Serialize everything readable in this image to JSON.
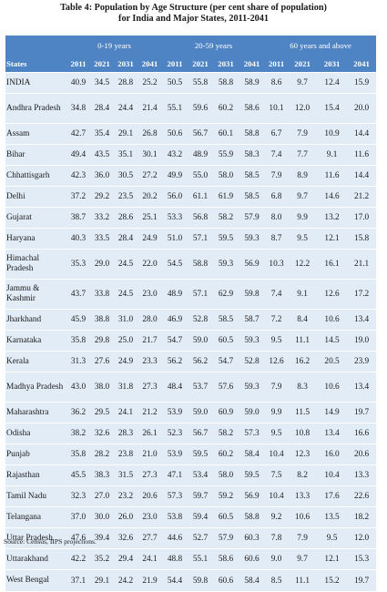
{
  "title": {
    "line1": "Table 4: Population by Age Structure (per cent share of population)",
    "line2": "for India and Major States, 2011-2041"
  },
  "groups": [
    "0-19 years",
    "20-59 years",
    "60 years and above"
  ],
  "header": {
    "state": "States",
    "years": [
      "2011",
      "2021",
      "2031",
      "2041",
      "2011",
      "2021",
      "2031",
      "2041",
      "2011",
      "2021",
      "2031",
      "2041"
    ]
  },
  "rows": [
    {
      "state": "INDIA",
      "values": [
        "40.9",
        "34.5",
        "28.8",
        "25.2",
        "50.5",
        "55.8",
        "58.8",
        "58.9",
        "8.6",
        "9.7",
        "12.4",
        "15.9"
      ]
    },
    {
      "state": "Andhra Pradesh",
      "values": [
        "34.8",
        "28.4",
        "24.4",
        "21.4",
        "55.1",
        "59.6",
        "60.2",
        "58.6",
        "10.1",
        "12.0",
        "15.4",
        "20.0"
      ]
    },
    {
      "state": "Assam",
      "values": [
        "42.7",
        "35.4",
        "29.1",
        "26.8",
        "50.6",
        "56.7",
        "60.1",
        "58.8",
        "6.7",
        "7.9",
        "10.9",
        "14.4"
      ]
    },
    {
      "state": "Bihar",
      "values": [
        "49.4",
        "43.5",
        "35.1",
        "30.1",
        "43.2",
        "48.9",
        "55.9",
        "58.3",
        "7.4",
        "7.7",
        "9.1",
        "11.6"
      ]
    },
    {
      "state": "Chhattisgarh",
      "values": [
        "42.3",
        "36.0",
        "30.5",
        "27.2",
        "49.9",
        "55.0",
        "58.0",
        "58.5",
        "7.9",
        "8.9",
        "11.6",
        "14.4"
      ]
    },
    {
      "state": "Delhi",
      "values": [
        "37.2",
        "29.2",
        "23.5",
        "20.2",
        "56.0",
        "61.1",
        "61.9",
        "58.5",
        "6.8",
        "9.7",
        "14.6",
        "21.2"
      ]
    },
    {
      "state": "Gujarat",
      "values": [
        "38.7",
        "33.2",
        "28.6",
        "25.1",
        "53.3",
        "56.8",
        "58.2",
        "57.9",
        "8.0",
        "9.9",
        "13.2",
        "17.0"
      ]
    },
    {
      "state": "Haryana",
      "values": [
        "40.3",
        "33.5",
        "28.4",
        "24.9",
        "51.0",
        "57.1",
        "59.5",
        "59.3",
        "8.7",
        "9.5",
        "12.1",
        "15.8"
      ]
    },
    {
      "state": "Himachal Pradesh",
      "values": [
        "35.3",
        "29.0",
        "24.5",
        "22.0",
        "54.5",
        "58.8",
        "59.3",
        "56.9",
        "10.3",
        "12.2",
        "16.1",
        "21.1"
      ]
    },
    {
      "state": "Jammu & Kashmir",
      "values": [
        "43.7",
        "33.8",
        "24.5",
        "23.0",
        "48.9",
        "57.1",
        "62.9",
        "59.8",
        "7.4",
        "9.1",
        "12.6",
        "17.2"
      ]
    },
    {
      "state": "Jharkhand",
      "values": [
        "45.9",
        "38.8",
        "31.0",
        "28.0",
        "46.9",
        "52.8",
        "58.5",
        "58.7",
        "7.2",
        "8.4",
        "10.6",
        "13.4"
      ]
    },
    {
      "state": "Karnataka",
      "values": [
        "35.8",
        "29.8",
        "25.0",
        "21.7",
        "54.7",
        "59.0",
        "60.5",
        "59.3",
        "9.5",
        "11.1",
        "14.5",
        "19.0"
      ]
    },
    {
      "state": "Kerala",
      "values": [
        "31.3",
        "27.6",
        "24.9",
        "23.3",
        "56.2",
        "56.2",
        "54.7",
        "52.8",
        "12.6",
        "16.2",
        "20.5",
        "23.9"
      ]
    },
    {
      "state": "Madhya Pradesh",
      "values": [
        "43.0",
        "38.0",
        "31.8",
        "27.3",
        "48.4",
        "53.7",
        "57.6",
        "59.3",
        "7.9",
        "8.3",
        "10.6",
        "13.4"
      ]
    },
    {
      "state": "Maharashtra",
      "values": [
        "36.2",
        "29.5",
        "24.1",
        "21.2",
        "53.9",
        "59.0",
        "60.9",
        "59.0",
        "9.9",
        "11.5",
        "14.9",
        "19.7"
      ]
    },
    {
      "state": "Odisha",
      "values": [
        "38.2",
        "32.6",
        "28.3",
        "26.1",
        "52.3",
        "56.7",
        "58.2",
        "57.3",
        "9.5",
        "10.8",
        "13.4",
        "16.6"
      ]
    },
    {
      "state": "Punjab",
      "values": [
        "35.8",
        "28.2",
        "23.8",
        "21.0",
        "53.9",
        "59.5",
        "60.2",
        "58.4",
        "10.4",
        "12.3",
        "16.0",
        "20.6"
      ]
    },
    {
      "state": "Rajasthan",
      "values": [
        "45.5",
        "38.3",
        "31.5",
        "27.3",
        "47.1",
        "53.4",
        "58.0",
        "59.5",
        "7.5",
        "8.2",
        "10.4",
        "13.3"
      ]
    },
    {
      "state": "Tamil Nadu",
      "values": [
        "32.3",
        "27.0",
        "23.2",
        "20.6",
        "57.3",
        "59.7",
        "59.2",
        "56.9",
        "10.4",
        "13.3",
        "17.6",
        "22.6"
      ]
    },
    {
      "state": "Telangana",
      "values": [
        "37.0",
        "30.0",
        "26.0",
        "23.0",
        "53.8",
        "59.4",
        "60.5",
        "58.8",
        "9.2",
        "10.6",
        "13.5",
        "18.2"
      ]
    },
    {
      "state": "Uttar Pradesh",
      "values": [
        "47.6",
        "39.4",
        "32.6",
        "27.7",
        "44.6",
        "52.7",
        "57.9",
        "60.3",
        "7.8",
        "7.9",
        "9.5",
        "12.0"
      ]
    },
    {
      "state": "Uttarakhand",
      "values": [
        "42.2",
        "35.2",
        "29.4",
        "24.1",
        "48.8",
        "55.1",
        "58.6",
        "60.6",
        "9.0",
        "9.7",
        "12.1",
        "15.3"
      ]
    },
    {
      "state": "West Bengal",
      "values": [
        "37.1",
        "29.1",
        "24.2",
        "21.9",
        "54.4",
        "59.8",
        "60.6",
        "58.4",
        "8.5",
        "11.1",
        "15.2",
        "19.7"
      ]
    }
  ],
  "source": "Source: Census,  IIPS projections."
}
